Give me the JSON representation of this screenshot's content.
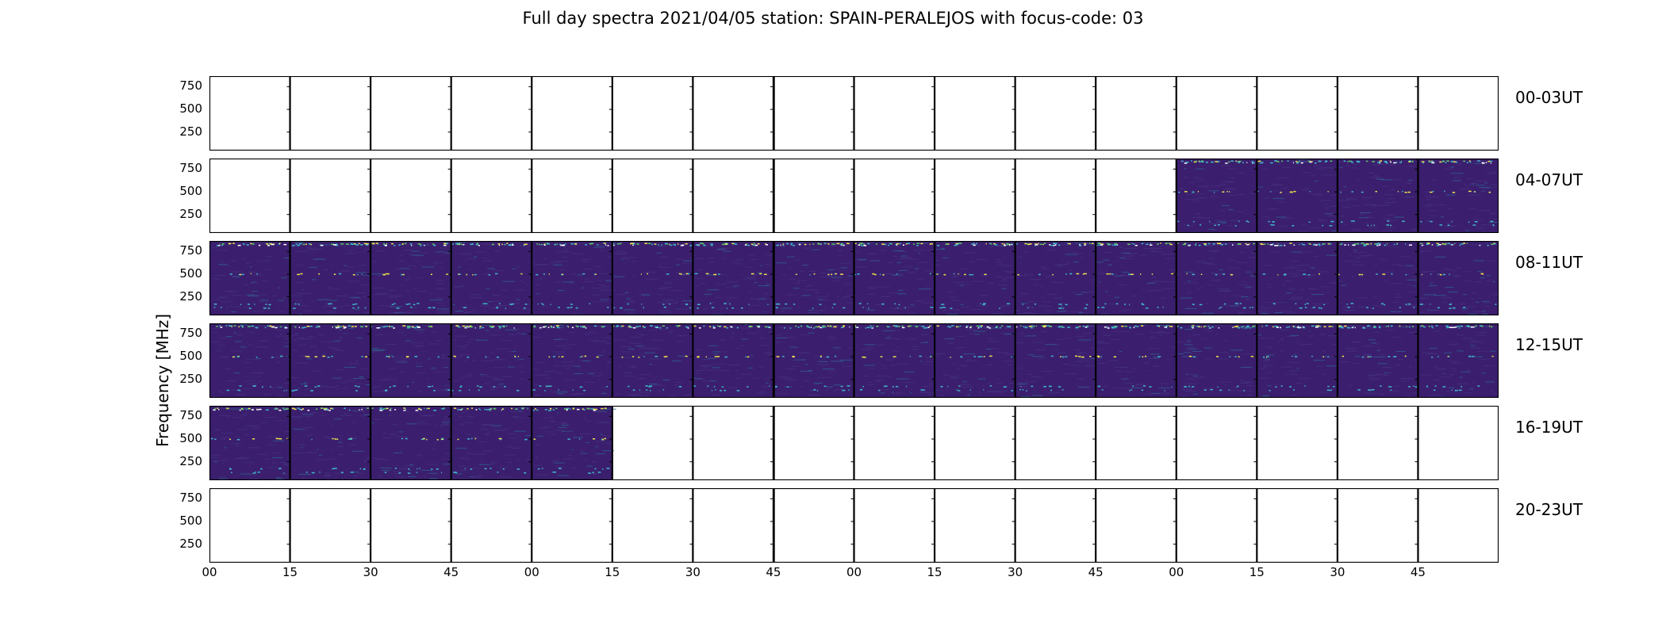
{
  "chart_data": {
    "type": "heatmap",
    "title": "Full day spectra 2021/04/05 station: SPAIN-PERALEJOS with focus-code: 03",
    "ylabel": "Frequency [MHz]",
    "yticks": [
      "750",
      "500",
      "250"
    ],
    "xticks": [
      "00",
      "15",
      "30",
      "45",
      "00",
      "15",
      "30",
      "45",
      "00",
      "15",
      "30",
      "45",
      "00",
      "15",
      "30",
      "45"
    ],
    "panels_per_row": 16,
    "minutes_per_panel": 15,
    "rows": [
      {
        "label": "00-03UT",
        "filled": [
          0,
          0,
          0,
          0,
          0,
          0,
          0,
          0,
          0,
          0,
          0,
          0,
          0,
          0,
          0,
          0
        ]
      },
      {
        "label": "04-07UT",
        "filled": [
          0,
          0,
          0,
          0,
          0,
          0,
          0,
          0,
          0,
          0,
          0,
          0,
          1,
          1,
          1,
          1
        ]
      },
      {
        "label": "08-11UT",
        "filled": [
          1,
          1,
          1,
          1,
          1,
          1,
          1,
          1,
          1,
          1,
          1,
          1,
          1,
          1,
          1,
          1
        ]
      },
      {
        "label": "12-15UT",
        "filled": [
          1,
          1,
          1,
          1,
          1,
          1,
          1,
          1,
          1,
          1,
          1,
          1,
          1,
          1,
          1,
          1
        ]
      },
      {
        "label": "16-19UT",
        "filled": [
          1,
          1,
          1,
          1,
          1,
          0,
          0,
          0,
          0,
          0,
          0,
          0,
          0,
          0,
          0,
          0
        ]
      },
      {
        "label": "20-23UT",
        "filled": [
          0,
          0,
          0,
          0,
          0,
          0,
          0,
          0,
          0,
          0,
          0,
          0,
          0,
          0,
          0,
          0
        ]
      }
    ],
    "colors": {
      "background": "#3b1f6e",
      "noise": "#46307f",
      "band_cyan": "#3fb6c8",
      "band_yellow": "#f2e64a",
      "band_green": "#5ac864"
    }
  }
}
